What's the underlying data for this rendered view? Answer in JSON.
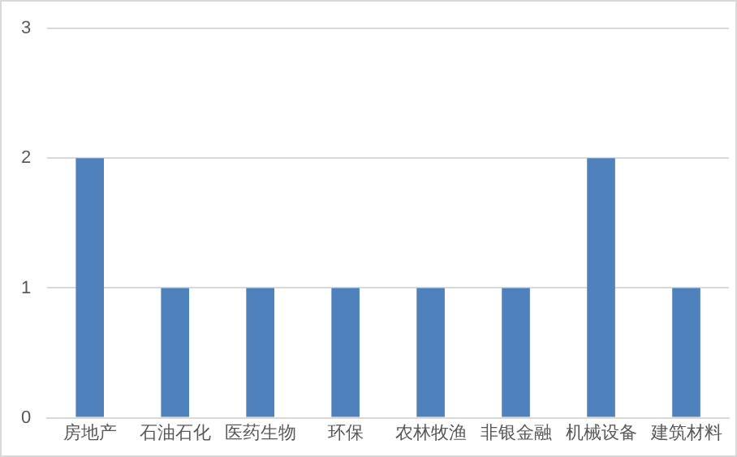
{
  "chart_data": {
    "type": "bar",
    "categories": [
      "房地产",
      "石油石化",
      "医药生物",
      "环保",
      "农林牧渔",
      "非银金融",
      "机械设备",
      "建筑材料"
    ],
    "values": [
      2,
      1,
      1,
      1,
      1,
      1,
      2,
      1
    ],
    "color": "#4f81bd",
    "ylim": [
      0,
      3
    ],
    "yticks": [
      0,
      1,
      2,
      3
    ],
    "grid": "y",
    "legend": false
  }
}
